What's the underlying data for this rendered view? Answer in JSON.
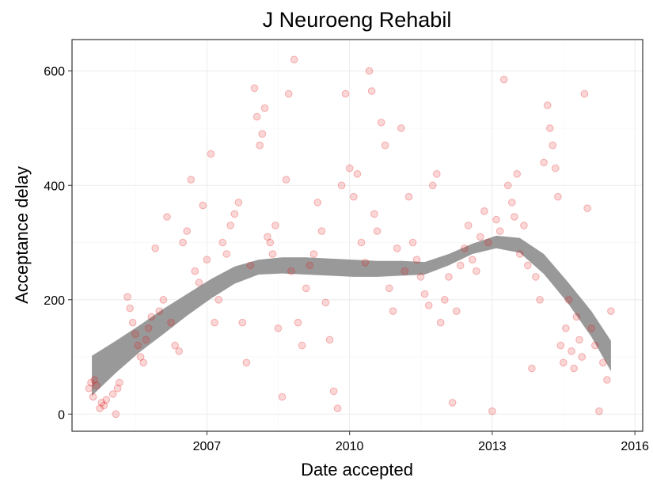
{
  "chart_data": {
    "type": "scatter",
    "title": "J Neuroeng Rehabil",
    "xlabel": "Date accepted",
    "ylabel": "Acceptance delay",
    "x_axis_type": "date",
    "xlim": [
      "2004-03-01",
      "2016-03-01"
    ],
    "ylim": [
      -30,
      655
    ],
    "x_ticks": [
      "2007",
      "2010",
      "2013",
      "2016"
    ],
    "y_ticks": [
      0,
      200,
      400,
      600
    ],
    "grid": true,
    "point_color": "#e41a1c",
    "point_opacity": 0.18,
    "smooth_band_color": "#999999",
    "smooth_band": {
      "x": [
        "2004-08-01",
        "2005-02-01",
        "2005-08-01",
        "2006-02-01",
        "2006-08-01",
        "2007-02-01",
        "2007-08-01",
        "2008-02-01",
        "2008-08-01",
        "2009-02-01",
        "2009-08-01",
        "2010-02-01",
        "2010-08-01",
        "2011-02-01",
        "2011-08-01",
        "2012-02-01",
        "2012-08-01",
        "2013-02-01",
        "2013-08-01",
        "2014-02-01",
        "2014-08-01",
        "2015-02-01",
        "2015-07-01"
      ],
      "lower": [
        32,
        72,
        108,
        140,
        172,
        202,
        228,
        244,
        246,
        244,
        242,
        240,
        240,
        242,
        244,
        260,
        280,
        290,
        282,
        245,
        195,
        135,
        75
      ],
      "upper": [
        102,
        128,
        155,
        184,
        210,
        236,
        258,
        270,
        274,
        274,
        272,
        270,
        268,
        268,
        266,
        280,
        298,
        312,
        308,
        280,
        232,
        180,
        128
      ]
    },
    "points": [
      {
        "x": "2004-07-10",
        "y": 45
      },
      {
        "x": "2004-07-25",
        "y": 55
      },
      {
        "x": "2004-08-10",
        "y": 30
      },
      {
        "x": "2004-08-20",
        "y": 60
      },
      {
        "x": "2004-09-05",
        "y": 50
      },
      {
        "x": "2004-10-01",
        "y": 10
      },
      {
        "x": "2004-10-15",
        "y": 20
      },
      {
        "x": "2004-11-01",
        "y": 15
      },
      {
        "x": "2004-11-20",
        "y": 25
      },
      {
        "x": "2005-01-10",
        "y": 35
      },
      {
        "x": "2005-02-01",
        "y": 0
      },
      {
        "x": "2005-02-15",
        "y": 45
      },
      {
        "x": "2005-03-01",
        "y": 55
      },
      {
        "x": "2005-05-01",
        "y": 205
      },
      {
        "x": "2005-05-20",
        "y": 185
      },
      {
        "x": "2005-06-10",
        "y": 160
      },
      {
        "x": "2005-07-01",
        "y": 140
      },
      {
        "x": "2005-07-20",
        "y": 120
      },
      {
        "x": "2005-08-10",
        "y": 100
      },
      {
        "x": "2005-09-01",
        "y": 90
      },
      {
        "x": "2005-09-20",
        "y": 130
      },
      {
        "x": "2005-10-10",
        "y": 150
      },
      {
        "x": "2005-11-01",
        "y": 170
      },
      {
        "x": "2005-12-01",
        "y": 290
      },
      {
        "x": "2006-01-01",
        "y": 180
      },
      {
        "x": "2006-02-01",
        "y": 200
      },
      {
        "x": "2006-03-01",
        "y": 345
      },
      {
        "x": "2006-04-01",
        "y": 160
      },
      {
        "x": "2006-05-01",
        "y": 120
      },
      {
        "x": "2006-06-01",
        "y": 110
      },
      {
        "x": "2006-07-01",
        "y": 300
      },
      {
        "x": "2006-08-01",
        "y": 320
      },
      {
        "x": "2006-09-01",
        "y": 410
      },
      {
        "x": "2006-10-01",
        "y": 250
      },
      {
        "x": "2006-11-01",
        "y": 230
      },
      {
        "x": "2006-12-01",
        "y": 365
      },
      {
        "x": "2007-01-01",
        "y": 270
      },
      {
        "x": "2007-02-01",
        "y": 455
      },
      {
        "x": "2007-03-01",
        "y": 160
      },
      {
        "x": "2007-04-01",
        "y": 200
      },
      {
        "x": "2007-05-01",
        "y": 300
      },
      {
        "x": "2007-06-01",
        "y": 280
      },
      {
        "x": "2007-07-01",
        "y": 330
      },
      {
        "x": "2007-08-01",
        "y": 350
      },
      {
        "x": "2007-09-01",
        "y": 370
      },
      {
        "x": "2007-10-01",
        "y": 160
      },
      {
        "x": "2007-11-01",
        "y": 90
      },
      {
        "x": "2007-12-01",
        "y": 260
      },
      {
        "x": "2008-01-01",
        "y": 570
      },
      {
        "x": "2008-01-20",
        "y": 520
      },
      {
        "x": "2008-02-10",
        "y": 470
      },
      {
        "x": "2008-03-01",
        "y": 490
      },
      {
        "x": "2008-03-20",
        "y": 535
      },
      {
        "x": "2008-04-10",
        "y": 310
      },
      {
        "x": "2008-05-01",
        "y": 300
      },
      {
        "x": "2008-05-20",
        "y": 280
      },
      {
        "x": "2008-06-10",
        "y": 330
      },
      {
        "x": "2008-07-01",
        "y": 150
      },
      {
        "x": "2008-08-01",
        "y": 30
      },
      {
        "x": "2008-09-01",
        "y": 410
      },
      {
        "x": "2008-09-20",
        "y": 560
      },
      {
        "x": "2008-10-10",
        "y": 250
      },
      {
        "x": "2008-11-01",
        "y": 620
      },
      {
        "x": "2008-12-01",
        "y": 160
      },
      {
        "x": "2009-01-01",
        "y": 120
      },
      {
        "x": "2009-02-01",
        "y": 220
      },
      {
        "x": "2009-03-01",
        "y": 260
      },
      {
        "x": "2009-04-01",
        "y": 280
      },
      {
        "x": "2009-05-01",
        "y": 370
      },
      {
        "x": "2009-06-01",
        "y": 320
      },
      {
        "x": "2009-07-01",
        "y": 195
      },
      {
        "x": "2009-08-01",
        "y": 130
      },
      {
        "x": "2009-09-01",
        "y": 40
      },
      {
        "x": "2009-10-01",
        "y": 10
      },
      {
        "x": "2009-11-01",
        "y": 400
      },
      {
        "x": "2009-12-01",
        "y": 560
      },
      {
        "x": "2010-01-01",
        "y": 430
      },
      {
        "x": "2010-02-01",
        "y": 380
      },
      {
        "x": "2010-03-01",
        "y": 420
      },
      {
        "x": "2010-04-01",
        "y": 300
      },
      {
        "x": "2010-05-01",
        "y": 265
      },
      {
        "x": "2010-06-01",
        "y": 600
      },
      {
        "x": "2010-06-20",
        "y": 565
      },
      {
        "x": "2010-07-10",
        "y": 350
      },
      {
        "x": "2010-08-01",
        "y": 320
      },
      {
        "x": "2010-09-01",
        "y": 510
      },
      {
        "x": "2010-10-01",
        "y": 470
      },
      {
        "x": "2010-11-01",
        "y": 220
      },
      {
        "x": "2010-12-01",
        "y": 180
      },
      {
        "x": "2011-01-01",
        "y": 290
      },
      {
        "x": "2011-02-01",
        "y": 500
      },
      {
        "x": "2011-03-01",
        "y": 250
      },
      {
        "x": "2011-04-01",
        "y": 380
      },
      {
        "x": "2011-05-01",
        "y": 300
      },
      {
        "x": "2011-06-01",
        "y": 270
      },
      {
        "x": "2011-07-01",
        "y": 240
      },
      {
        "x": "2011-08-01",
        "y": 210
      },
      {
        "x": "2011-09-01",
        "y": 190
      },
      {
        "x": "2011-10-01",
        "y": 400
      },
      {
        "x": "2011-11-01",
        "y": 420
      },
      {
        "x": "2011-12-01",
        "y": 160
      },
      {
        "x": "2012-01-01",
        "y": 200
      },
      {
        "x": "2012-02-01",
        "y": 240
      },
      {
        "x": "2012-03-01",
        "y": 20
      },
      {
        "x": "2012-04-01",
        "y": 180
      },
      {
        "x": "2012-05-01",
        "y": 260
      },
      {
        "x": "2012-06-01",
        "y": 290
      },
      {
        "x": "2012-07-01",
        "y": 330
      },
      {
        "x": "2012-08-01",
        "y": 270
      },
      {
        "x": "2012-09-01",
        "y": 250
      },
      {
        "x": "2012-10-01",
        "y": 310
      },
      {
        "x": "2012-11-01",
        "y": 355
      },
      {
        "x": "2012-12-01",
        "y": 300
      },
      {
        "x": "2013-01-01",
        "y": 5
      },
      {
        "x": "2013-02-01",
        "y": 340
      },
      {
        "x": "2013-03-01",
        "y": 320
      },
      {
        "x": "2013-04-01",
        "y": 585
      },
      {
        "x": "2013-05-01",
        "y": 400
      },
      {
        "x": "2013-06-01",
        "y": 370
      },
      {
        "x": "2013-06-20",
        "y": 345
      },
      {
        "x": "2013-07-10",
        "y": 420
      },
      {
        "x": "2013-08-01",
        "y": 280
      },
      {
        "x": "2013-09-01",
        "y": 330
      },
      {
        "x": "2013-10-01",
        "y": 260
      },
      {
        "x": "2013-11-01",
        "y": 80
      },
      {
        "x": "2013-12-01",
        "y": 240
      },
      {
        "x": "2014-01-01",
        "y": 200
      },
      {
        "x": "2014-02-01",
        "y": 440
      },
      {
        "x": "2014-03-01",
        "y": 540
      },
      {
        "x": "2014-03-20",
        "y": 500
      },
      {
        "x": "2014-04-10",
        "y": 470
      },
      {
        "x": "2014-05-01",
        "y": 430
      },
      {
        "x": "2014-05-20",
        "y": 380
      },
      {
        "x": "2014-06-10",
        "y": 120
      },
      {
        "x": "2014-07-01",
        "y": 90
      },
      {
        "x": "2014-07-20",
        "y": 150
      },
      {
        "x": "2014-08-10",
        "y": 200
      },
      {
        "x": "2014-09-01",
        "y": 110
      },
      {
        "x": "2014-09-20",
        "y": 80
      },
      {
        "x": "2014-10-10",
        "y": 170
      },
      {
        "x": "2014-11-01",
        "y": 130
      },
      {
        "x": "2014-11-20",
        "y": 100
      },
      {
        "x": "2014-12-10",
        "y": 560
      },
      {
        "x": "2015-01-01",
        "y": 360
      },
      {
        "x": "2015-02-01",
        "y": 150
      },
      {
        "x": "2015-03-01",
        "y": 120
      },
      {
        "x": "2015-04-01",
        "y": 5
      },
      {
        "x": "2015-05-01",
        "y": 90
      },
      {
        "x": "2015-06-01",
        "y": 60
      },
      {
        "x": "2015-07-01",
        "y": 180
      }
    ]
  }
}
